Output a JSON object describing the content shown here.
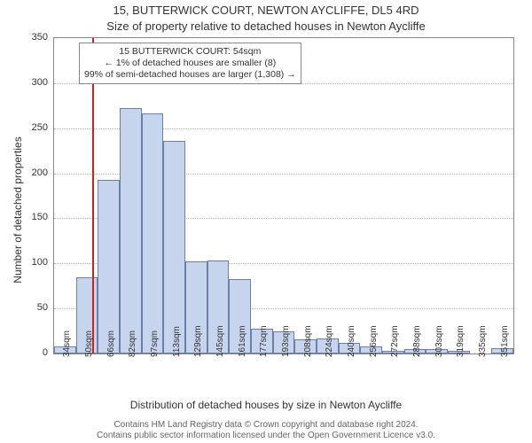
{
  "chart": {
    "type": "histogram",
    "title_main": "15, BUTTERWICK COURT, NEWTON AYCLIFFE, DL5 4RD",
    "title_sub": "Size of property relative to detached houses in Newton Aycliffe",
    "title_fontsize": 13,
    "y_label": "Number of detached properties",
    "x_label": "Distribution of detached houses by size in Newton Aycliffe",
    "label_fontsize": 12,
    "background_color": "#ffffff",
    "axis_color": "#888888",
    "grid_color": "#bbbbbb",
    "bar_fill": "#c6d4ee",
    "bar_border": "#6b7fa8",
    "marker_line_color": "#d02020",
    "ylim": [
      0,
      350
    ],
    "ytick_step": 50,
    "yticks": [
      0,
      50,
      100,
      150,
      200,
      250,
      300,
      350
    ],
    "x_categories": [
      "34sqm",
      "50sqm",
      "66sqm",
      "82sqm",
      "97sqm",
      "113sqm",
      "129sqm",
      "145sqm",
      "161sqm",
      "177sqm",
      "193sqm",
      "208sqm",
      "224sqm",
      "240sqm",
      "256sqm",
      "272sqm",
      "288sqm",
      "303sqm",
      "319sqm",
      "335sqm",
      "351sqm"
    ],
    "values": [
      8,
      85,
      193,
      272,
      266,
      236,
      102,
      103,
      83,
      28,
      25,
      16,
      17,
      12,
      8,
      3,
      5,
      5,
      3,
      0,
      6
    ],
    "marker_value_sqm": 54,
    "annotation": {
      "line1": "15 BUTTERWICK COURT: 54sqm",
      "line2": "← 1% of detached houses are smaller (8)",
      "line3": "99% of semi-detached houses are larger (1,308) →",
      "border_color": "#888888",
      "bg_color": "#ffffff",
      "fontsize": 10.5
    },
    "bar_width_ratio": 1.0
  },
  "footer": {
    "line1": "Contains HM Land Registry data © Crown copyright and database right 2024.",
    "line2": "Contains public sector information licensed under the Open Government Licence v3.0.",
    "color": "#666666",
    "fontsize": 10
  }
}
